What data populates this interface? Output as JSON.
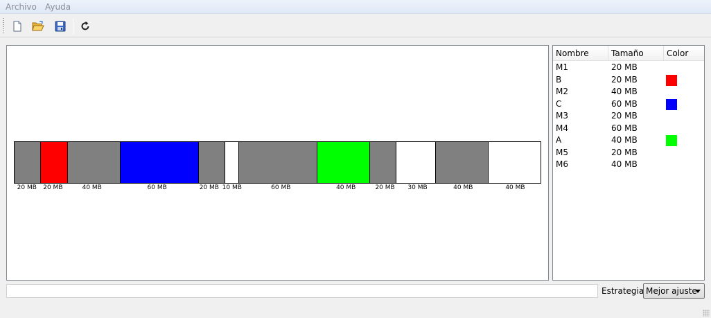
{
  "menubar": {
    "items": [
      {
        "label": "Archivo"
      },
      {
        "label": "Ayuda"
      }
    ]
  },
  "toolbar": {
    "buttons": [
      {
        "name": "new-file",
        "icon": "new-document-icon"
      },
      {
        "name": "open-file",
        "icon": "open-folder-icon"
      },
      {
        "name": "save-file",
        "icon": "save-disk-icon"
      },
      {
        "name": "refresh",
        "icon": "refresh-icon"
      }
    ]
  },
  "memory": {
    "blocks": [
      {
        "size_mb": 20,
        "label": "20 MB",
        "color": "#808080"
      },
      {
        "size_mb": 20,
        "label": "20 MB",
        "color": "#ff0000"
      },
      {
        "size_mb": 40,
        "label": "40 MB",
        "color": "#808080"
      },
      {
        "size_mb": 60,
        "label": "60 MB",
        "color": "#0000ff"
      },
      {
        "size_mb": 20,
        "label": "20 MB",
        "color": "#808080"
      },
      {
        "size_mb": 10,
        "label": "10 MB",
        "color": "#ffffff"
      },
      {
        "size_mb": 60,
        "label": "60 MB",
        "color": "#808080"
      },
      {
        "size_mb": 40,
        "label": "40 MB",
        "color": "#00ff00"
      },
      {
        "size_mb": 20,
        "label": "20 MB",
        "color": "#808080"
      },
      {
        "size_mb": 30,
        "label": "30 MB",
        "color": "#ffffff"
      },
      {
        "size_mb": 40,
        "label": "40 MB",
        "color": "#808080"
      },
      {
        "size_mb": 40,
        "label": "40 MB",
        "color": "#ffffff"
      }
    ]
  },
  "list": {
    "headers": {
      "name": "Nombre",
      "size": "Tamaño",
      "color": "Color"
    },
    "rows": [
      {
        "name": "M1",
        "size": "20 MB",
        "color": ""
      },
      {
        "name": "B",
        "size": "20 MB",
        "color": "#ff0000"
      },
      {
        "name": "M2",
        "size": "40 MB",
        "color": ""
      },
      {
        "name": "C",
        "size": "60 MB",
        "color": "#0000ff"
      },
      {
        "name": "M3",
        "size": "20 MB",
        "color": ""
      },
      {
        "name": "M4",
        "size": "60 MB",
        "color": ""
      },
      {
        "name": "A",
        "size": "40 MB",
        "color": "#00ff00"
      },
      {
        "name": "M5",
        "size": "20 MB",
        "color": ""
      },
      {
        "name": "M6",
        "size": "40 MB",
        "color": ""
      }
    ]
  },
  "footer": {
    "status_text": "",
    "strategy_label": "Estrategia:",
    "strategy_value": "Mejor ajuste"
  }
}
